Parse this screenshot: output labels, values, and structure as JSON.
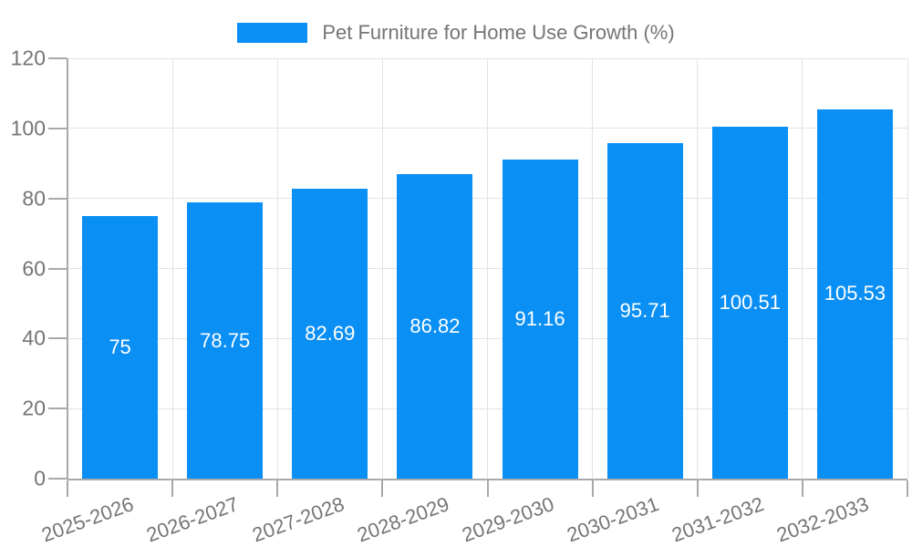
{
  "legend": {
    "label": "Pet Furniture for Home Use Growth (%)",
    "swatch_color": "#0A8FF5"
  },
  "chart_data": {
    "type": "bar",
    "title": "Pet Furniture for Home Use Growth (%)",
    "categories": [
      "2025-2026",
      "2026-2027",
      "2027-2028",
      "2028-2029",
      "2029-2030",
      "2030-2031",
      "2031-2032",
      "2032-2033"
    ],
    "values": [
      75,
      78.75,
      82.69,
      86.82,
      91.16,
      95.71,
      100.51,
      105.53
    ],
    "bar_labels": [
      "75",
      "78.75",
      "82.69",
      "86.82",
      "91.16",
      "95.71",
      "100.51",
      "105.53"
    ],
    "xlabel": "",
    "ylabel": "",
    "ylim": [
      0,
      120
    ],
    "yticks": [
      0,
      20,
      40,
      60,
      80,
      100,
      120
    ],
    "grid": true,
    "legend_position": "top-center",
    "bar_color": "#0A8FF5",
    "bar_label_color": "#ffffff",
    "grid_color": "#e3e3e3",
    "axis_color": "#a9a9a9",
    "text_color": "#757575"
  }
}
